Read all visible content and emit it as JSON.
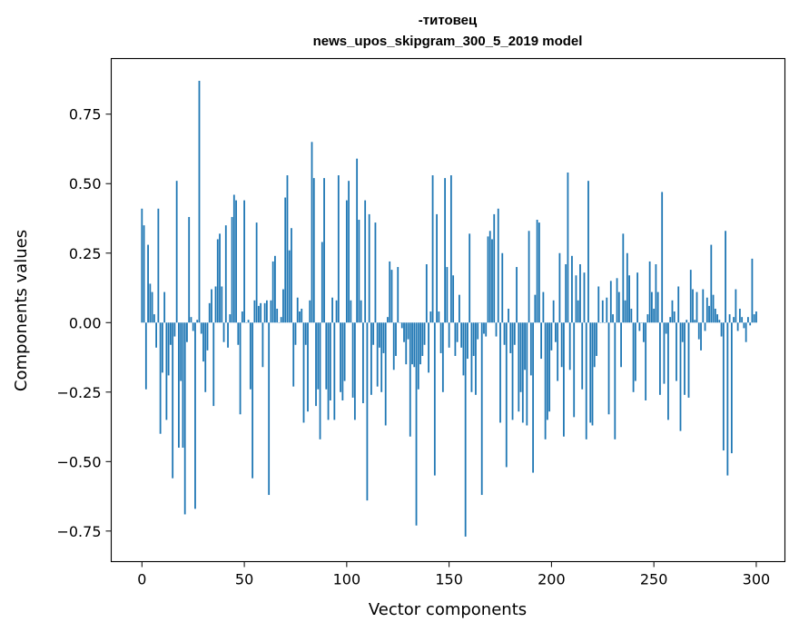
{
  "chart_data": {
    "type": "bar",
    "title": "-титовец",
    "subtitle": "news_upos_skipgram_300_5_2019 model",
    "xlabel": "Vector components",
    "ylabel": "Components values",
    "xlim": [
      -15,
      314
    ],
    "ylim": [
      -0.86,
      0.95
    ],
    "xticks": [
      0,
      50,
      100,
      150,
      200,
      250,
      300
    ],
    "yticks": [
      -0.75,
      -0.5,
      -0.25,
      0.0,
      0.25,
      0.5,
      0.75
    ],
    "xtick_labels": [
      "0",
      "50",
      "100",
      "150",
      "200",
      "250",
      "300"
    ],
    "ytick_labels": [
      "−0.75",
      "−0.50",
      "−0.25",
      "0.00",
      "0.25",
      "0.50",
      "0.75"
    ],
    "grid": false,
    "bar_color": "#1f77b4",
    "values": [
      0.41,
      0.35,
      -0.24,
      0.28,
      0.14,
      0.11,
      0.03,
      -0.09,
      0.41,
      -0.4,
      -0.18,
      0.11,
      -0.35,
      -0.19,
      -0.08,
      -0.56,
      -0.05,
      0.51,
      -0.45,
      -0.21,
      -0.45,
      -0.69,
      -0.07,
      0.38,
      0.02,
      -0.03,
      -0.67,
      0.01,
      0.87,
      -0.04,
      -0.14,
      -0.25,
      -0.1,
      0.07,
      0.12,
      -0.3,
      0.13,
      0.3,
      0.32,
      0.13,
      -0.07,
      0.35,
      -0.09,
      0.03,
      0.38,
      0.46,
      0.44,
      -0.08,
      -0.33,
      0.04,
      0.44,
      0.0,
      0.01,
      -0.24,
      -0.56,
      0.08,
      0.36,
      0.06,
      0.07,
      -0.16,
      0.07,
      0.08,
      -0.62,
      0.08,
      0.22,
      0.24,
      0.05,
      0.0,
      0.02,
      0.12,
      0.45,
      0.53,
      0.26,
      0.34,
      -0.23,
      -0.08,
      0.09,
      0.04,
      0.05,
      -0.36,
      -0.08,
      -0.32,
      0.08,
      0.65,
      0.52,
      -0.3,
      -0.24,
      -0.42,
      0.29,
      0.52,
      -0.24,
      -0.35,
      -0.28,
      0.09,
      -0.35,
      0.08,
      0.53,
      -0.25,
      -0.28,
      -0.21,
      0.44,
      0.51,
      0.08,
      -0.27,
      -0.35,
      0.59,
      0.37,
      0.08,
      -0.29,
      0.44,
      -0.64,
      0.39,
      -0.26,
      -0.08,
      0.36,
      -0.23,
      -0.09,
      -0.25,
      -0.11,
      -0.37,
      0.02,
      0.22,
      0.19,
      -0.17,
      -0.12,
      0.2,
      0.0,
      -0.02,
      -0.07,
      -0.15,
      -0.06,
      -0.41,
      -0.15,
      -0.16,
      -0.73,
      -0.24,
      -0.15,
      -0.12,
      -0.08,
      0.21,
      -0.18,
      0.04,
      0.53,
      -0.55,
      0.39,
      0.04,
      -0.11,
      -0.25,
      0.52,
      0.2,
      -0.09,
      0.53,
      0.17,
      -0.12,
      -0.07,
      0.1,
      -0.09,
      -0.19,
      -0.77,
      -0.13,
      0.32,
      -0.25,
      -0.12,
      -0.26,
      -0.06,
      0.0,
      -0.62,
      -0.04,
      -0.05,
      0.31,
      0.33,
      0.3,
      0.39,
      -0.05,
      0.41,
      -0.36,
      0.25,
      -0.08,
      -0.52,
      0.05,
      -0.11,
      -0.35,
      -0.08,
      0.2,
      -0.32,
      -0.25,
      -0.36,
      -0.17,
      -0.37,
      0.33,
      -0.19,
      -0.54,
      0.1,
      0.37,
      0.36,
      -0.13,
      0.11,
      -0.42,
      -0.35,
      -0.32,
      -0.1,
      0.08,
      -0.07,
      -0.21,
      0.25,
      -0.16,
      -0.41,
      0.21,
      0.54,
      -0.17,
      0.24,
      -0.34,
      0.17,
      0.08,
      0.21,
      -0.24,
      0.18,
      -0.42,
      0.51,
      -0.36,
      -0.37,
      -0.16,
      -0.12,
      0.13,
      0.0,
      0.08,
      0.0,
      0.09,
      -0.33,
      0.15,
      0.03,
      -0.42,
      0.16,
      0.11,
      -0.16,
      0.32,
      0.08,
      0.25,
      0.17,
      0.05,
      -0.25,
      -0.21,
      0.18,
      -0.03,
      0.0,
      -0.07,
      -0.28,
      0.03,
      0.22,
      0.11,
      0.05,
      0.21,
      0.11,
      -0.26,
      0.47,
      -0.22,
      -0.04,
      -0.35,
      0.02,
      0.08,
      0.04,
      -0.21,
      0.13,
      -0.39,
      -0.07,
      -0.26,
      0.01,
      -0.27,
      0.19,
      0.12,
      0.01,
      0.11,
      -0.06,
      -0.1,
      0.12,
      -0.03,
      0.09,
      0.06,
      0.28,
      0.1,
      0.05,
      0.03,
      0.01,
      -0.05,
      -0.46,
      0.33,
      -0.55,
      0.03,
      -0.47,
      0.02,
      0.12,
      -0.03,
      0.05,
      0.02,
      -0.02,
      -0.07,
      0.02,
      -0.01,
      0.23,
      0.03,
      0.04
    ]
  }
}
